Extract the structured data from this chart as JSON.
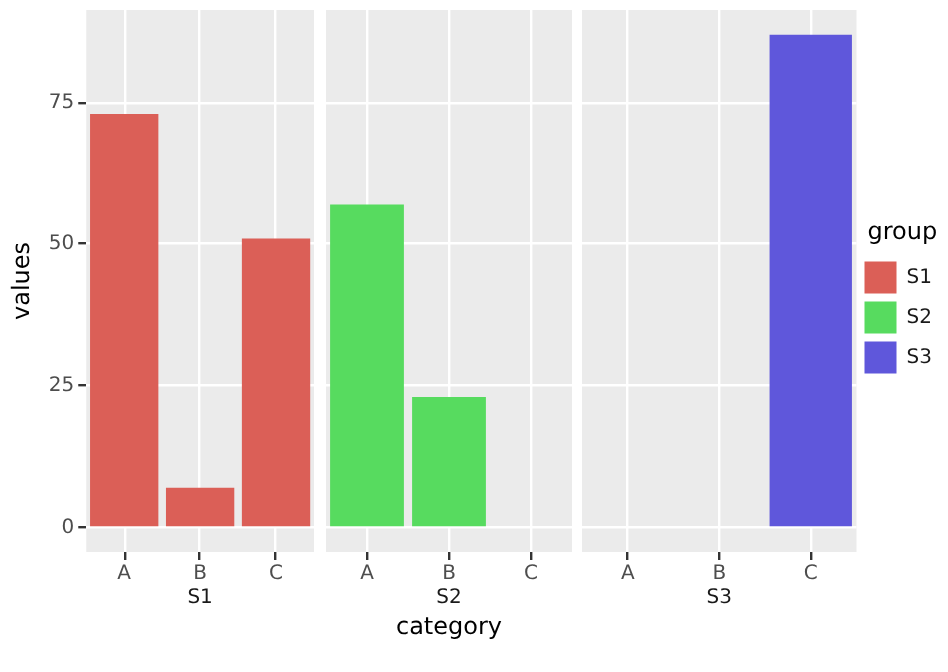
{
  "chart_data": [
    {
      "type": "bar",
      "title": "S1",
      "ylabel": "values",
      "categories": [
        "A",
        "B",
        "C"
      ],
      "series": [
        {
          "color": "#db5f57",
          "values": [
            73,
            7,
            51
          ]
        }
      ],
      "ylim": [
        -4.35,
        91.35
      ],
      "yticks": [
        0,
        25,
        50,
        75
      ],
      "grid": true,
      "legend": false
    },
    {
      "type": "bar",
      "title": "S2",
      "xlabel": "category",
      "categories": [
        "A",
        "B",
        "C"
      ],
      "series": [
        {
          "color": "#57db5f",
          "values": [
            57,
            23,
            null
          ]
        }
      ],
      "ylim": [
        -4.35,
        91.35
      ],
      "yticks": [
        0,
        25,
        50,
        75
      ],
      "grid": true,
      "legend": false,
      "tick_labels": "x"
    },
    {
      "type": "bar",
      "title": "S3",
      "legend_title": "group",
      "categories": [
        "A",
        "B",
        "C"
      ],
      "series": [
        {
          "name": "S1",
          "color": "#db5f57",
          "values": [
            null,
            null,
            null
          ]
        },
        {
          "name": "S2",
          "color": "#57db5f",
          "values": [
            null,
            null,
            null
          ]
        },
        {
          "name": "S3",
          "color": "#5f57db",
          "values": [
            null,
            null,
            87
          ]
        }
      ],
      "ylim": [
        -4.35,
        91.35
      ],
      "yticks": [
        0,
        25,
        50,
        75
      ],
      "grid": true,
      "legend": "right",
      "tick_labels": "x"
    }
  ]
}
